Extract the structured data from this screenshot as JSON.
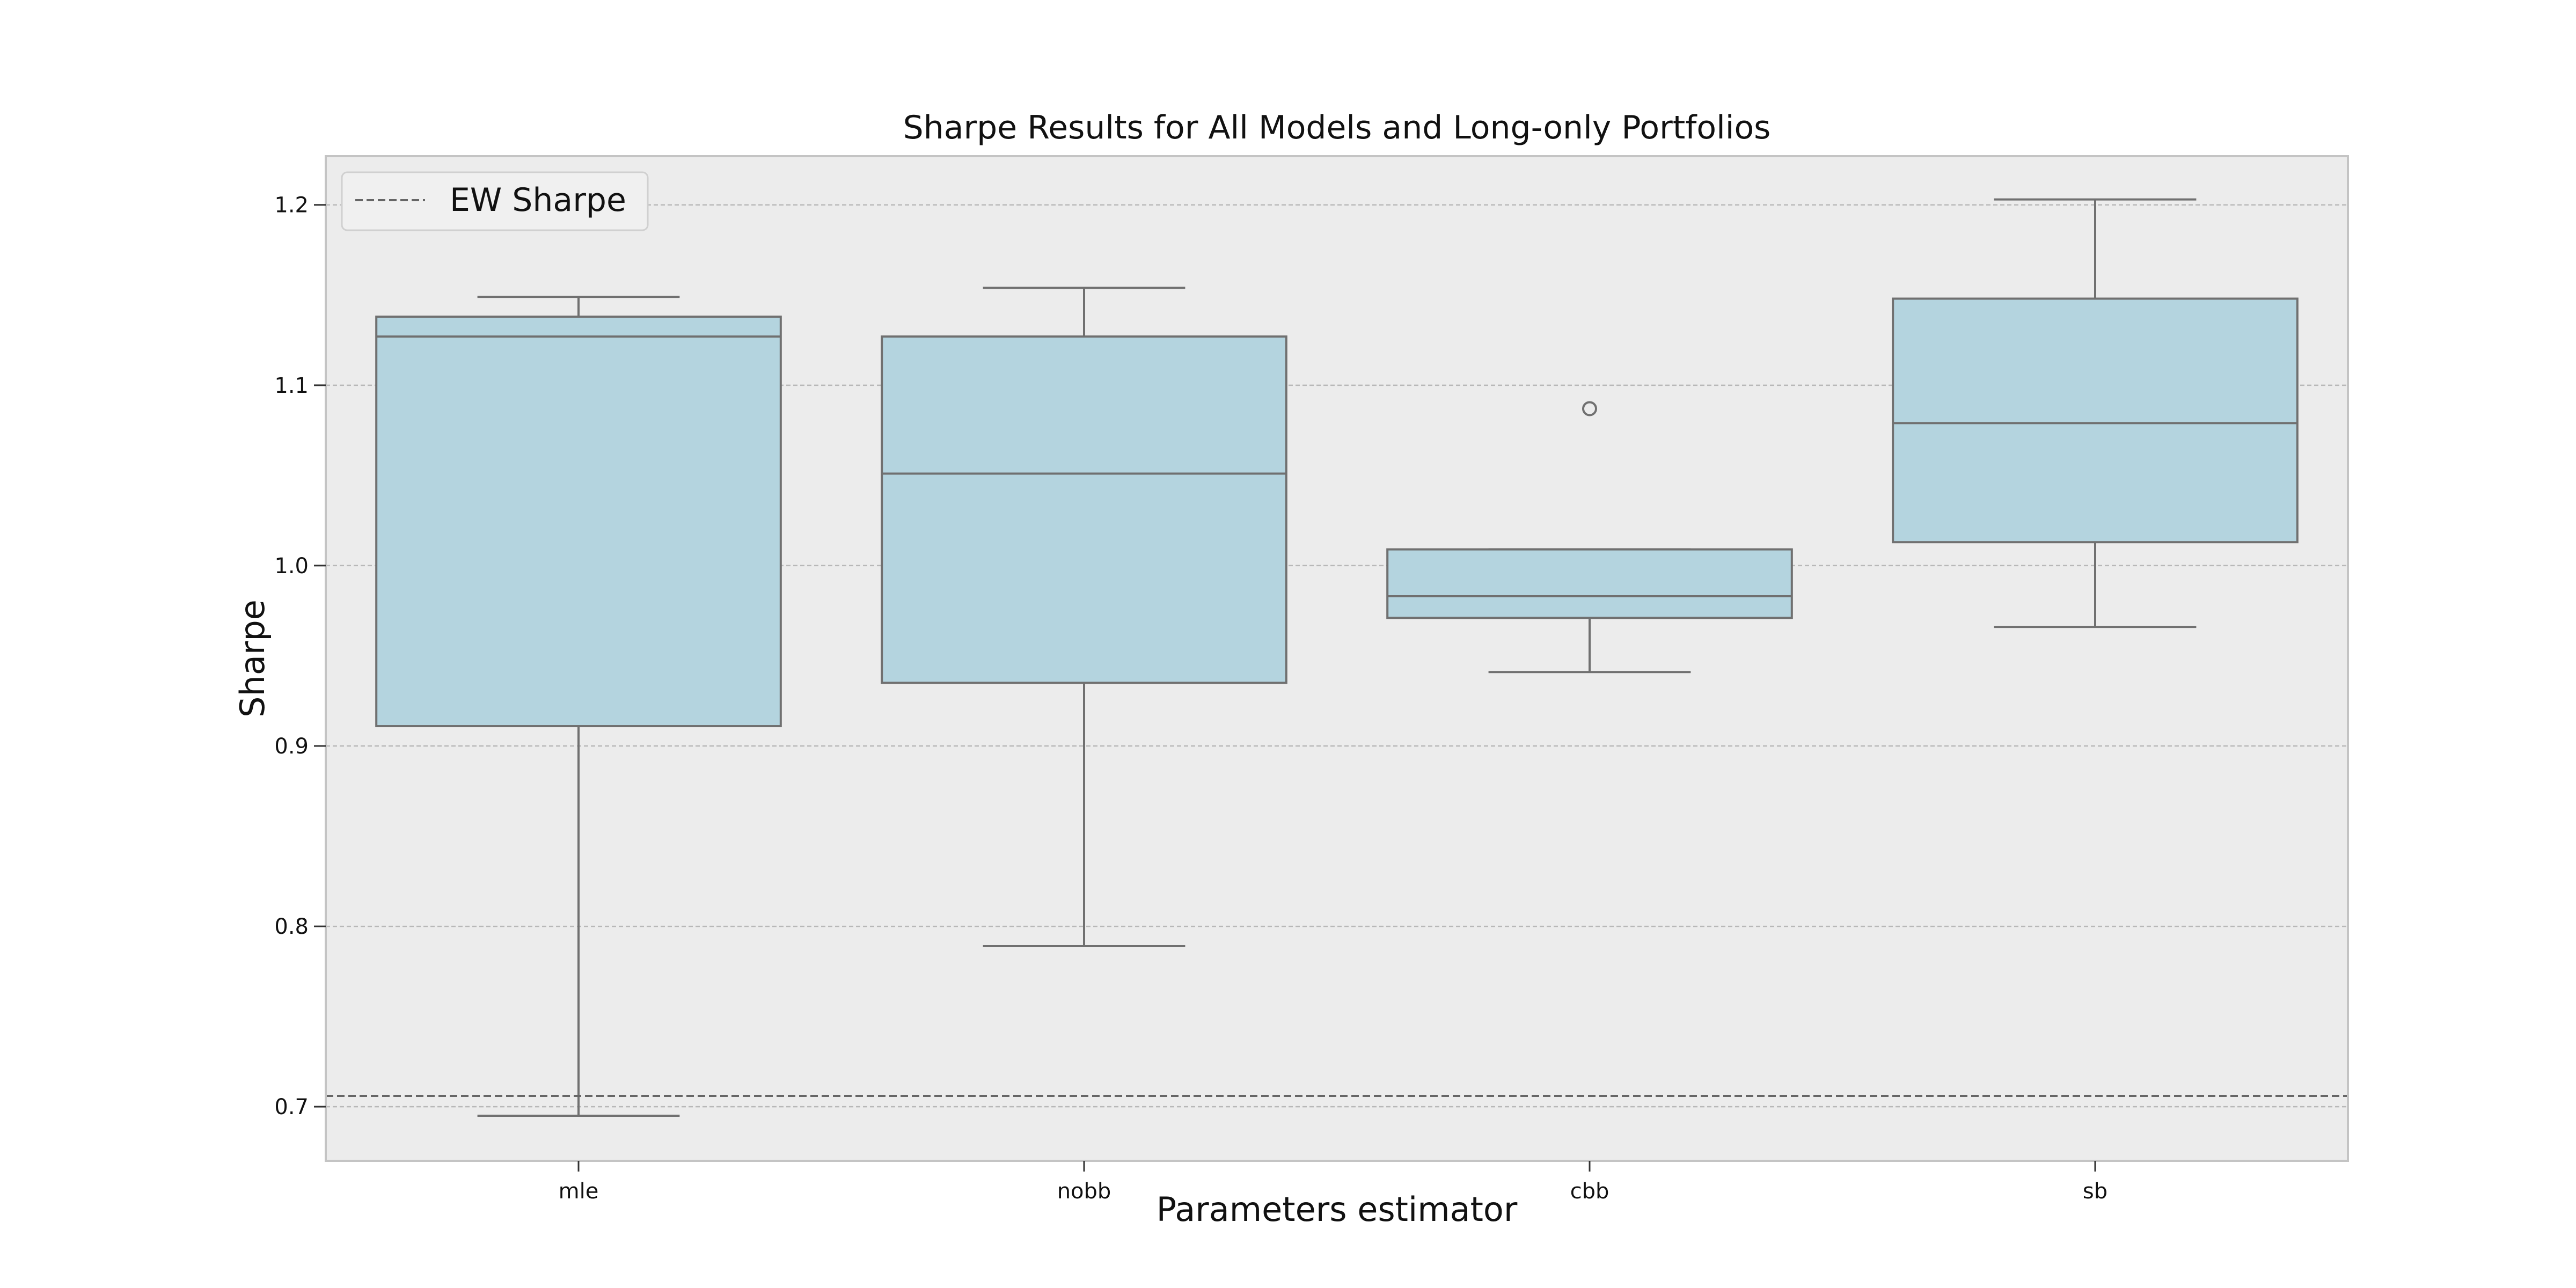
{
  "chart_data": {
    "type": "box",
    "title": "Sharpe Results for All Models and Long-only Portfolios",
    "xlabel": "Parameters estimator",
    "ylabel": "Sharpe",
    "ylim": [
      0.67,
      1.227
    ],
    "yticks": [
      0.7,
      0.8,
      0.9,
      1.0,
      1.1,
      1.2
    ],
    "ytick_labels": [
      "0.7",
      "0.8",
      "0.9",
      "1.0",
      "1.1",
      "1.2"
    ],
    "grid": "horizontal dashed",
    "legend": {
      "position": "top-left",
      "entries": [
        "EW Sharpe"
      ]
    },
    "reference_line": {
      "name": "EW Sharpe",
      "value": 0.706,
      "style": "dashed"
    },
    "categories": [
      "mle",
      "nobb",
      "cbb",
      "sb"
    ],
    "boxes": [
      {
        "name": "mle",
        "whisker_low": 0.695,
        "q1": 0.911,
        "median": 1.127,
        "q3": 1.138,
        "whisker_high": 1.149,
        "outliers": []
      },
      {
        "name": "nobb",
        "whisker_low": 0.789,
        "q1": 0.935,
        "median": 1.051,
        "q3": 1.127,
        "whisker_high": 1.154,
        "outliers": []
      },
      {
        "name": "cbb",
        "whisker_low": 0.941,
        "q1": 0.971,
        "median": 0.983,
        "q3": 1.009,
        "whisker_high": 1.009,
        "outliers": [
          1.087
        ]
      },
      {
        "name": "sb",
        "whisker_low": 0.966,
        "q1": 1.013,
        "median": 1.079,
        "q3": 1.148,
        "whisker_high": 1.203,
        "outliers": []
      }
    ],
    "colors": {
      "box_fill": "#b4d4df",
      "box_edge": "#707070",
      "axes_bg": "#ececec",
      "grid": "#b8b8b8",
      "spine": "#c4c4c4",
      "reference_line": "#666666",
      "text": "#111111"
    }
  }
}
